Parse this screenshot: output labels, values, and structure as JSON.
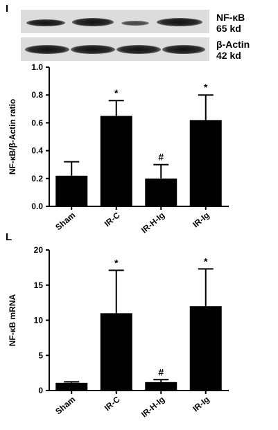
{
  "figure": {
    "panel_i": "I",
    "panel_l": "L"
  },
  "blot": {
    "label_top_line1": "NF-κB",
    "label_top_line2": "65 kd",
    "label_bottom_line1": "β-Actin",
    "label_bottom_line2": "42 kd",
    "strip_color": "#dcdcdc",
    "band_color": "#111111"
  },
  "chart_data": [
    {
      "type": "bar",
      "panel": "I",
      "categories": [
        "Sham",
        "IR-C",
        "IR-H-Ig",
        "IR-Ig"
      ],
      "values": [
        0.22,
        0.65,
        0.2,
        0.62
      ],
      "errors": [
        0.1,
        0.11,
        0.1,
        0.18
      ],
      "markers": [
        "",
        "*",
        "#",
        "*"
      ],
      "title": "",
      "xlabel": "",
      "ylabel": "NF-κB/β-Actin ratio",
      "ylim": [
        0,
        1.0
      ],
      "yticks": [
        "0.0",
        "0.2",
        "0.4",
        "0.6",
        "0.8",
        "1.0"
      ],
      "bar_color": "#000000",
      "grid": false
    },
    {
      "type": "bar",
      "panel": "L",
      "categories": [
        "Sham",
        "IR-C",
        "IR-H-Ig",
        "IR-Ig"
      ],
      "values": [
        1.1,
        11.0,
        1.2,
        12.0
      ],
      "errors": [
        0.15,
        6.1,
        0.35,
        5.3
      ],
      "markers": [
        "",
        "*",
        "#",
        "*"
      ],
      "title": "",
      "xlabel": "",
      "ylabel": "NF-κB mRNA",
      "ylim": [
        0,
        20
      ],
      "yticks": [
        "0",
        "5",
        "10",
        "15",
        "20"
      ],
      "bar_color": "#000000",
      "grid": false
    }
  ]
}
